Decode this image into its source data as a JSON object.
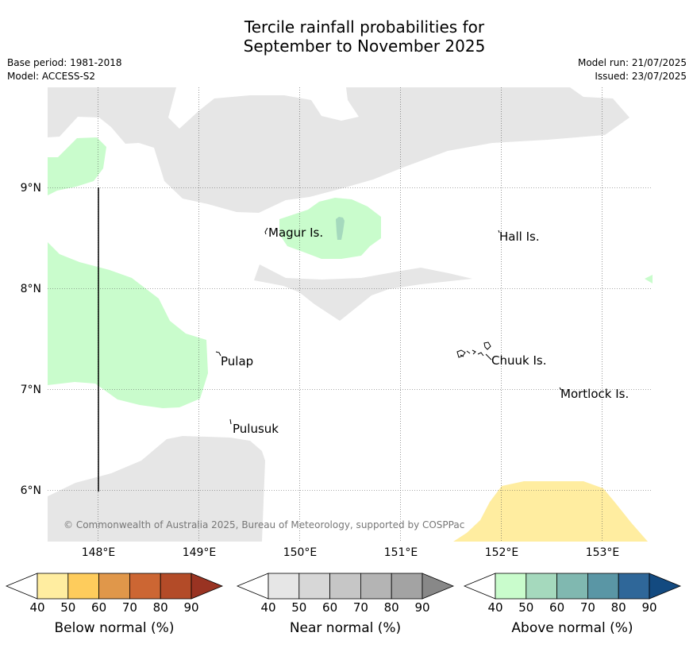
{
  "header": {
    "title_line1": "Tercile rainfall probabilities for",
    "title_line2": "September to November 2025",
    "base_period": "Base period: 1981-2018",
    "model": "Model: ACCESS-S2",
    "model_run": "Model run: 21/07/2025",
    "issued": "Issued: 23/07/2025"
  },
  "map": {
    "lat_labels": [
      "9°N",
      "8°N",
      "7°N",
      "6°N"
    ],
    "lon_labels": [
      "148°E",
      "149°E",
      "150°E",
      "151°E",
      "152°E",
      "153°E"
    ],
    "places": [
      "Magur Is.",
      "Hall Is.",
      "Pulap",
      "Chuuk Is.",
      "Mortlock Is.",
      "Pulusuk"
    ],
    "copyright": "© Commonwealth of Australia 2025, Bureau of Meteorology, supported by COSPPac"
  },
  "colorbars": {
    "ticks": [
      "40",
      "50",
      "60",
      "70",
      "80",
      "90"
    ],
    "below": {
      "title": "Below normal (%)",
      "colors": [
        "#ffeda0",
        "#fecc5c",
        "#e0974a",
        "#cc6633",
        "#b34b28",
        "#993322"
      ]
    },
    "near": {
      "title": "Near normal (%)",
      "colors": [
        "#e6e6e6",
        "#d7d7d7",
        "#c6c6c6",
        "#b4b4b4",
        "#a3a3a3",
        "#888888"
      ]
    },
    "above": {
      "title": "Above normal (%)",
      "colors": [
        "#c9fccc",
        "#a5d9bd",
        "#80b8b0",
        "#5a96a5",
        "#2f6799",
        "#134a80"
      ]
    }
  }
}
